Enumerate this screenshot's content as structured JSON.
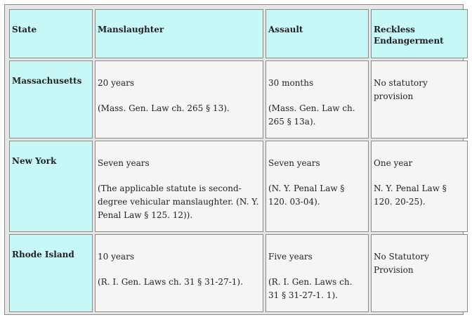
{
  "headers": [
    "State",
    "Manslaughter",
    "Assault",
    "Reckless Endangerment"
  ],
  "rows": [
    {
      "state": "Massachusetts",
      "manslaughter": {
        "term": "20 years",
        "citation": "(Mass. Gen. Law ch. 265 § 13)."
      },
      "assault": {
        "term": "30 months",
        "citation": "(Mass. Gen. Law ch. 265 § 13a)."
      },
      "reckless": {
        "term": "No statutory provision",
        "citation": ""
      }
    },
    {
      "state": "New York",
      "manslaughter": {
        "term": "Seven years",
        "citation": "(The applicable statute is second-degree vehicular manslaughter. (N. Y. Penal Law § 125. 12))."
      },
      "assault": {
        "term": "Seven years",
        "citation": "(N. Y. Penal Law § 120. 03-04)."
      },
      "reckless": {
        "term": "One year",
        "citation": "N. Y. Penal Law § 120. 20-25)."
      }
    },
    {
      "state": "Rhode Island",
      "manslaughter": {
        "term": "10 years",
        "citation": "(R. I. Gen. Laws ch. 31 § 31-27-1)."
      },
      "assault": {
        "term": "Five years",
        "citation": "(R. I. Gen. Laws ch. 31 § 31-27-1. 1)."
      },
      "reckless": {
        "term": "No Statutory Provision",
        "citation": ""
      }
    }
  ]
}
